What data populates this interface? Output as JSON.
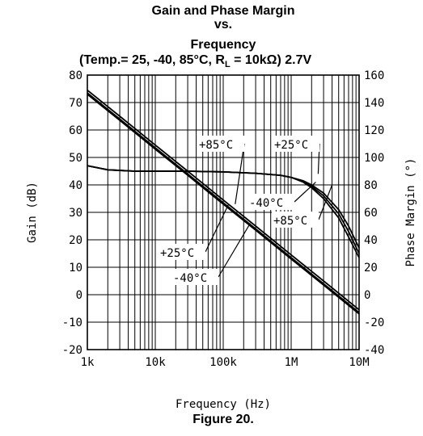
{
  "chart_data": {
    "type": "line",
    "title_lines": [
      "Gain and Phase Margin",
      "vs.",
      "Frequency",
      "(Temp.= 25, -40, 85°C, R",
      "L",
      " = 10kΩ) 2.7V"
    ],
    "xlabel": "Frequency (Hz)",
    "ylabel_left": "Gain (dB)",
    "ylabel_right": "Phase Margin (°)",
    "x_scale": "log",
    "xlim": [
      1000,
      10000000
    ],
    "ylim_left": [
      -20,
      80
    ],
    "ylim_right": [
      -40,
      160
    ],
    "grid": true,
    "x_ticks": [
      {
        "value": 1000,
        "label": "1k"
      },
      {
        "value": 10000,
        "label": "10k"
      },
      {
        "value": 100000,
        "label": "100k"
      },
      {
        "value": 1000000,
        "label": "1M"
      },
      {
        "value": 10000000,
        "label": "10M"
      }
    ],
    "y_ticks_left": [
      {
        "value": 80,
        "label": "80"
      },
      {
        "value": 70,
        "label": "70"
      },
      {
        "value": 60,
        "label": "60"
      },
      {
        "value": 50,
        "label": "50"
      },
      {
        "value": 40,
        "label": "40"
      },
      {
        "value": 30,
        "label": "30"
      },
      {
        "value": 20,
        "label": "20"
      },
      {
        "value": 10,
        "label": "10"
      },
      {
        "value": 0,
        "label": "0"
      },
      {
        "value": -10,
        "label": "-10"
      },
      {
        "value": -20,
        "label": "-20"
      }
    ],
    "y_ticks_right": [
      {
        "value": 160,
        "label": "160"
      },
      {
        "value": 140,
        "label": "140"
      },
      {
        "value": 120,
        "label": "120"
      },
      {
        "value": 100,
        "label": "100"
      },
      {
        "value": 80,
        "label": "80"
      },
      {
        "value": 60,
        "label": "60"
      },
      {
        "value": 40,
        "label": "40"
      },
      {
        "value": 20,
        "label": "20"
      },
      {
        "value": 0,
        "label": "0"
      },
      {
        "value": -20,
        "label": "-20"
      },
      {
        "value": -40,
        "label": "-40"
      }
    ],
    "series": [
      {
        "kind": "gain",
        "axis": "left",
        "x": [
          1000,
          3000,
          10000,
          30000,
          100000,
          300000,
          1000000,
          3000000,
          10000000
        ],
        "y": [
          73.5,
          64,
          53.5,
          44,
          33.5,
          24,
          13.5,
          4,
          -6.5
        ]
      },
      {
        "kind": "gain",
        "axis": "left",
        "x": [
          1000,
          3000,
          10000,
          30000,
          100000,
          300000,
          1000000,
          3000000,
          10000000
        ],
        "y": [
          74.5,
          65,
          54.5,
          45,
          34.5,
          25,
          14.5,
          5,
          -5.5
        ]
      },
      {
        "kind": "gain",
        "axis": "left",
        "x": [
          1000,
          3000,
          10000,
          30000,
          100000,
          300000,
          1000000,
          3000000,
          10000000
        ],
        "y": [
          73,
          63.5,
          53,
          43.5,
          33,
          23.5,
          13,
          3.5,
          -7
        ]
      },
      {
        "kind": "phase",
        "axis": "right",
        "x": [
          1000,
          2000,
          5000,
          10000,
          30000,
          100000,
          300000,
          700000,
          1000000,
          1500000,
          2000000,
          3000000,
          5000000,
          7000000,
          10000000
        ],
        "y": [
          94,
          91,
          90,
          90,
          90,
          89.5,
          88.5,
          87,
          85.5,
          83,
          80,
          74,
          62,
          50,
          34
        ]
      },
      {
        "kind": "phase",
        "axis": "right",
        "x": [
          1000,
          2000,
          5000,
          10000,
          30000,
          100000,
          300000,
          700000,
          1000000,
          1500000,
          2000000,
          3000000,
          5000000,
          7000000,
          10000000
        ],
        "y": [
          94,
          91,
          90,
          90,
          90,
          89.5,
          88.5,
          87,
          85.5,
          82.5,
          79,
          72,
          59,
          46,
          30
        ]
      },
      {
        "kind": "phase",
        "axis": "right",
        "x": [
          1000,
          2000,
          5000,
          10000,
          30000,
          100000,
          300000,
          700000,
          1000000,
          1500000,
          2000000,
          3000000,
          5000000,
          7000000,
          10000000
        ],
        "y": [
          94,
          91,
          90,
          90,
          90,
          89.5,
          88.5,
          87,
          85.5,
          82,
          78,
          70,
          56,
          42,
          27
        ]
      }
    ],
    "annotations": [
      {
        "text": "+85°C",
        "target": [
          150000,
          33
        ]
      },
      {
        "text": "+25°C",
        "target": [
          2500000,
          38
        ]
      },
      {
        "text": "-40°C",
        "target": [
          2300000,
          35
        ]
      },
      {
        "text": "+85°C",
        "target": [
          4000000,
          34
        ]
      },
      {
        "text": "+25°C",
        "target": [
          120000,
          33
        ]
      },
      {
        "text": "-40°C",
        "target": [
          250000,
          26
        ]
      }
    ]
  },
  "caption": "Figure 20."
}
